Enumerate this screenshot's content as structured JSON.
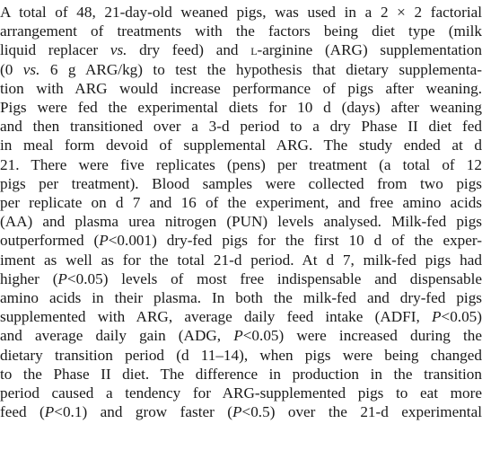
{
  "abstract": {
    "lines": [
      "A total of 48, 21-day-old weaned pigs, was used in a 2 × 2 factorial",
      "arrangement of treatments with the factors being diet type (milk",
      "liquid replacer vs. dry feed) and L-arginine (ARG) supplementation",
      "(0 vs. 6 g ARG/kg) to test the hypothesis that dietary supplementa-",
      "tion with ARG would increase performance of pigs after weaning.",
      "Pigs were fed the experimental diets for 10 d (days) after weaning",
      "and then transitioned over a 3-d period to a dry Phase II diet fed",
      "in meal form devoid of supplemental ARG. The study ended at d",
      "21. There were five replicates (pens) per treatment (a total of 12",
      "pigs per treatment). Blood samples were collected from two pigs",
      "per replicate on d 7 and 16 of the experiment, and free amino acids",
      "(AA) and plasma urea nitrogen (PUN) levels analysed. Milk-fed pigs",
      "outperformed (P<0.001) dry-fed pigs for the first 10 d of the exper-",
      "iment as well as for the total 21-d period. At d 7, milk-fed pigs had",
      "higher (P<0.05) levels of most free indispensable and dispensable",
      "amino acids in their plasma. In both the milk-fed and dry-fed pigs",
      "supplemented with ARG, average daily feed intake (ADFI, P<0.05)",
      "and average daily gain (ADG, P<0.05) were increased during the",
      "dietary transition period (d 11–14), when pigs were being changed",
      "to the Phase II diet. The difference in production in the transition",
      "period caused a tendency for ARG-supplemented pigs to eat more",
      "feed (P<0.1) and grow faster (P<0.5) over the 21-d experimental"
    ]
  }
}
